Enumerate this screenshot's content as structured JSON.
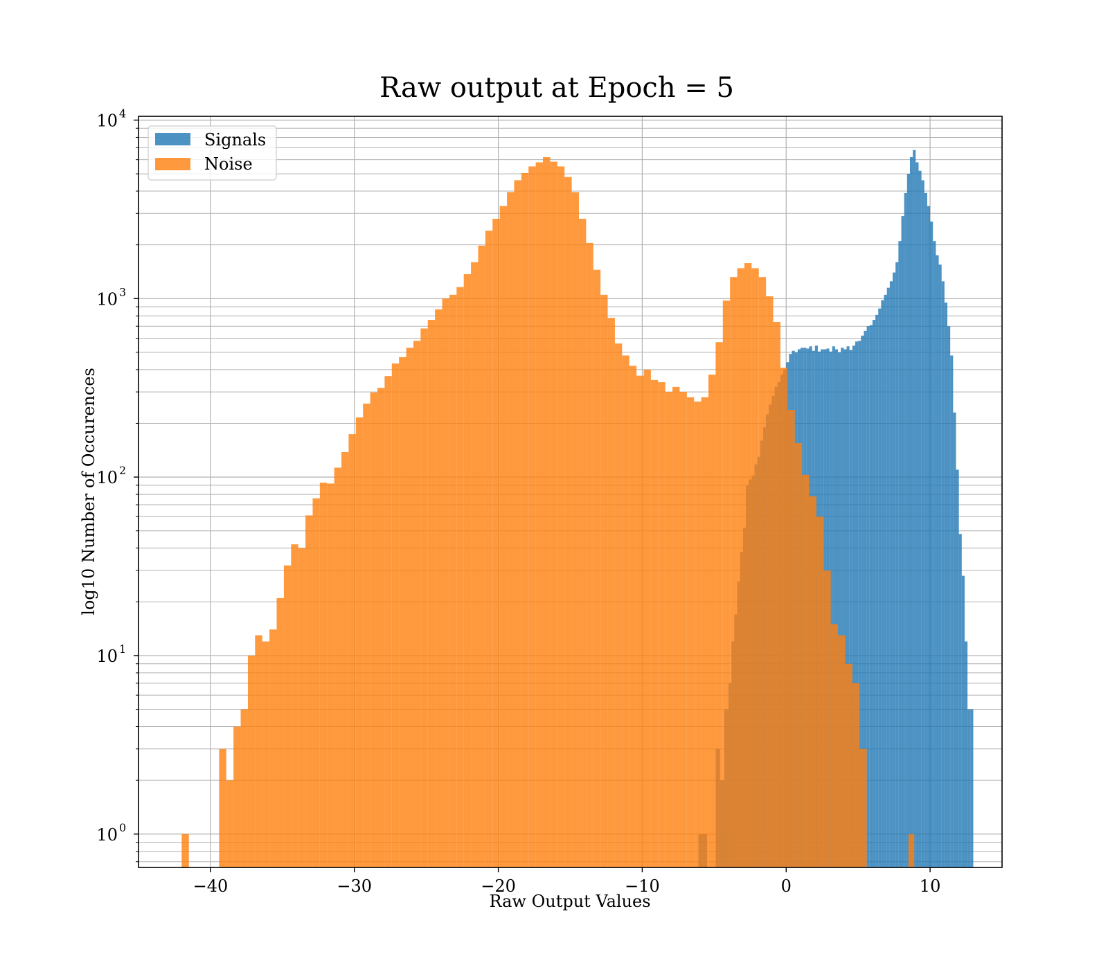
{
  "chart_data": {
    "type": "histogram",
    "title": "Raw output at Epoch = 5",
    "xlabel": "Raw Output Values",
    "ylabel": "log10 Number of Occurences",
    "xlim": [
      -45,
      15
    ],
    "ylim": [
      0.65,
      10500
    ],
    "yscale": "log",
    "grid": true,
    "legend_position": "upper-left",
    "x_ticks": [
      {
        "value": -40,
        "label": "−40"
      },
      {
        "value": -30,
        "label": "−30"
      },
      {
        "value": -20,
        "label": "−20"
      },
      {
        "value": -10,
        "label": "−10"
      },
      {
        "value": 0,
        "label": "0"
      },
      {
        "value": 10,
        "label": "10"
      }
    ],
    "y_ticks": [
      {
        "value": 1,
        "base": "10",
        "exp": "0"
      },
      {
        "value": 10,
        "base": "10",
        "exp": "1"
      },
      {
        "value": 100,
        "base": "10",
        "exp": "2"
      },
      {
        "value": 1000,
        "base": "10",
        "exp": "3"
      },
      {
        "value": 10000,
        "base": "10",
        "exp": "4"
      }
    ],
    "series": [
      {
        "name": "Signals",
        "color": "#1f77b4",
        "alpha": 0.8,
        "bins": [
          [
            -6.1,
            -5.8,
            1
          ],
          [
            -5.8,
            -5.5,
            1
          ],
          [
            -4.9,
            -4.6,
            3
          ],
          [
            -4.6,
            -4.3,
            2
          ],
          [
            -4.3,
            -4.0,
            5
          ],
          [
            -4.0,
            -3.8,
            7
          ],
          [
            -3.8,
            -3.6,
            12
          ],
          [
            -3.6,
            -3.4,
            17
          ],
          [
            -3.4,
            -3.2,
            26
          ],
          [
            -3.2,
            -3.0,
            38
          ],
          [
            -3.0,
            -2.8,
            52
          ],
          [
            -2.8,
            -2.6,
            90
          ],
          [
            -2.6,
            -2.4,
            97
          ],
          [
            -2.4,
            -2.2,
            102
          ],
          [
            -2.2,
            -2.0,
            118
          ],
          [
            -2.0,
            -1.8,
            130
          ],
          [
            -1.8,
            -1.6,
            160
          ],
          [
            -1.6,
            -1.4,
            190
          ],
          [
            -1.4,
            -1.2,
            225
          ],
          [
            -1.2,
            -1.0,
            255
          ],
          [
            -1.0,
            -0.8,
            285
          ],
          [
            -0.8,
            -0.6,
            320
          ],
          [
            -0.6,
            -0.4,
            340
          ],
          [
            -0.4,
            -0.2,
            375
          ],
          [
            -0.2,
            0.0,
            400
          ],
          [
            0.0,
            0.2,
            440
          ],
          [
            0.2,
            0.4,
            490
          ],
          [
            0.4,
            0.6,
            510
          ],
          [
            0.6,
            0.8,
            500
          ],
          [
            0.8,
            1.0,
            520
          ],
          [
            1.0,
            1.2,
            530
          ],
          [
            1.2,
            1.4,
            530
          ],
          [
            1.4,
            1.6,
            525
          ],
          [
            1.6,
            1.8,
            540
          ],
          [
            1.8,
            2.0,
            510
          ],
          [
            2.0,
            2.2,
            545
          ],
          [
            2.2,
            2.4,
            505
          ],
          [
            2.4,
            2.6,
            520
          ],
          [
            2.6,
            2.8,
            520
          ],
          [
            2.8,
            3.0,
            525
          ],
          [
            3.0,
            3.2,
            505
          ],
          [
            3.2,
            3.4,
            540
          ],
          [
            3.4,
            3.6,
            520
          ],
          [
            3.6,
            3.8,
            500
          ],
          [
            3.8,
            4.0,
            530
          ],
          [
            4.0,
            4.2,
            520
          ],
          [
            4.2,
            4.4,
            540
          ],
          [
            4.4,
            4.6,
            515
          ],
          [
            4.6,
            4.8,
            545
          ],
          [
            4.8,
            5.0,
            575
          ],
          [
            5.0,
            5.2,
            580
          ],
          [
            5.2,
            5.4,
            620
          ],
          [
            5.4,
            5.6,
            660
          ],
          [
            5.6,
            5.8,
            700
          ],
          [
            5.8,
            6.0,
            710
          ],
          [
            6.0,
            6.2,
            760
          ],
          [
            6.2,
            6.4,
            810
          ],
          [
            6.4,
            6.6,
            880
          ],
          [
            6.6,
            6.8,
            980
          ],
          [
            6.8,
            7.0,
            1050
          ],
          [
            7.0,
            7.2,
            1150
          ],
          [
            7.2,
            7.4,
            1250
          ],
          [
            7.4,
            7.6,
            1400
          ],
          [
            7.6,
            7.8,
            1600
          ],
          [
            7.8,
            8.0,
            2100
          ],
          [
            8.0,
            8.2,
            2900
          ],
          [
            8.2,
            8.4,
            3900
          ],
          [
            8.4,
            8.6,
            5000
          ],
          [
            8.6,
            8.8,
            6200
          ],
          [
            8.8,
            9.0,
            6800
          ],
          [
            9.0,
            9.2,
            5800
          ],
          [
            9.2,
            9.4,
            5200
          ],
          [
            9.4,
            9.6,
            4600
          ],
          [
            9.6,
            9.8,
            3900
          ],
          [
            9.8,
            10.0,
            3300
          ],
          [
            10.0,
            10.2,
            2700
          ],
          [
            10.2,
            10.4,
            2100
          ],
          [
            10.4,
            10.6,
            1750
          ],
          [
            10.6,
            10.8,
            1550
          ],
          [
            10.8,
            11.0,
            1250
          ],
          [
            11.0,
            11.2,
            950
          ],
          [
            11.2,
            11.4,
            700
          ],
          [
            11.4,
            11.6,
            480
          ],
          [
            11.6,
            11.8,
            230
          ],
          [
            11.8,
            12.0,
            110
          ],
          [
            12.0,
            12.2,
            48
          ],
          [
            12.2,
            12.4,
            28
          ],
          [
            12.4,
            12.6,
            12
          ],
          [
            12.6,
            12.8,
            5
          ],
          [
            12.8,
            13.0,
            5
          ]
        ]
      },
      {
        "name": "Noise",
        "color": "#ff7f0e",
        "alpha": 0.8,
        "bins": [
          [
            -42.0,
            -41.5,
            1
          ],
          [
            -39.4,
            -38.9,
            3
          ],
          [
            -38.9,
            -38.4,
            2
          ],
          [
            -38.4,
            -37.9,
            4
          ],
          [
            -37.9,
            -37.4,
            5
          ],
          [
            -37.4,
            -36.9,
            10
          ],
          [
            -36.9,
            -36.4,
            13
          ],
          [
            -36.4,
            -35.9,
            12
          ],
          [
            -35.9,
            -35.4,
            14
          ],
          [
            -35.4,
            -34.9,
            21
          ],
          [
            -34.9,
            -34.4,
            32
          ],
          [
            -34.4,
            -33.9,
            42
          ],
          [
            -33.9,
            -33.4,
            40
          ],
          [
            -33.4,
            -32.9,
            61
          ],
          [
            -32.9,
            -32.4,
            76
          ],
          [
            -32.4,
            -31.9,
            93
          ],
          [
            -31.9,
            -31.4,
            92
          ],
          [
            -31.4,
            -30.9,
            113
          ],
          [
            -30.9,
            -30.4,
            138
          ],
          [
            -30.4,
            -29.9,
            174
          ],
          [
            -29.9,
            -29.4,
            216
          ],
          [
            -29.4,
            -28.9,
            258
          ],
          [
            -28.9,
            -28.4,
            298
          ],
          [
            -28.4,
            -27.9,
            316
          ],
          [
            -27.9,
            -27.4,
            368
          ],
          [
            -27.4,
            -26.9,
            433
          ],
          [
            -26.9,
            -26.4,
            470
          ],
          [
            -26.4,
            -25.9,
            530
          ],
          [
            -25.9,
            -25.4,
            580
          ],
          [
            -25.4,
            -24.9,
            680
          ],
          [
            -24.9,
            -24.4,
            760
          ],
          [
            -24.4,
            -23.9,
            870
          ],
          [
            -23.9,
            -23.4,
            1000
          ],
          [
            -23.4,
            -22.9,
            1050
          ],
          [
            -22.9,
            -22.4,
            1160
          ],
          [
            -22.4,
            -21.9,
            1370
          ],
          [
            -21.9,
            -21.4,
            1600
          ],
          [
            -21.4,
            -20.9,
            1980
          ],
          [
            -20.9,
            -20.4,
            2400
          ],
          [
            -20.4,
            -19.9,
            2800
          ],
          [
            -19.9,
            -19.4,
            3300
          ],
          [
            -19.4,
            -18.9,
            3950
          ],
          [
            -18.9,
            -18.4,
            4600
          ],
          [
            -18.4,
            -17.9,
            5050
          ],
          [
            -17.9,
            -17.4,
            5500
          ],
          [
            -17.4,
            -16.9,
            5800
          ],
          [
            -16.9,
            -16.4,
            6200
          ],
          [
            -16.4,
            -15.9,
            5850
          ],
          [
            -15.9,
            -15.4,
            5500
          ],
          [
            -15.4,
            -14.9,
            4800
          ],
          [
            -14.9,
            -14.4,
            3950
          ],
          [
            -14.4,
            -13.9,
            2800
          ],
          [
            -13.9,
            -13.4,
            2050
          ],
          [
            -13.4,
            -12.9,
            1450
          ],
          [
            -12.9,
            -12.4,
            1050
          ],
          [
            -12.4,
            -11.9,
            780
          ],
          [
            -11.9,
            -11.4,
            560
          ],
          [
            -11.4,
            -10.9,
            480
          ],
          [
            -10.9,
            -10.4,
            420
          ],
          [
            -10.4,
            -9.9,
            370
          ],
          [
            -9.9,
            -9.4,
            400
          ],
          [
            -9.4,
            -8.9,
            350
          ],
          [
            -8.9,
            -8.4,
            340
          ],
          [
            -8.4,
            -7.9,
            300
          ],
          [
            -7.9,
            -7.4,
            320
          ],
          [
            -7.4,
            -6.9,
            300
          ],
          [
            -6.9,
            -6.4,
            280
          ],
          [
            -6.4,
            -5.9,
            265
          ],
          [
            -5.9,
            -5.4,
            280
          ],
          [
            -5.4,
            -4.9,
            375
          ],
          [
            -4.9,
            -4.4,
            570
          ],
          [
            -4.4,
            -3.9,
            975
          ],
          [
            -3.9,
            -3.4,
            1320
          ],
          [
            -3.4,
            -2.9,
            1480
          ],
          [
            -2.9,
            -2.4,
            1580
          ],
          [
            -2.4,
            -1.9,
            1480
          ],
          [
            -1.9,
            -1.4,
            1320
          ],
          [
            -1.4,
            -0.9,
            1030
          ],
          [
            -0.9,
            -0.4,
            740
          ],
          [
            -0.4,
            0.1,
            410
          ],
          [
            0.1,
            0.6,
            238
          ],
          [
            0.6,
            1.1,
            155
          ],
          [
            1.1,
            1.6,
            103
          ],
          [
            1.6,
            2.1,
            78
          ],
          [
            2.1,
            2.6,
            60
          ],
          [
            2.6,
            3.1,
            30
          ],
          [
            3.1,
            3.6,
            15
          ],
          [
            3.6,
            4.1,
            13
          ],
          [
            4.1,
            4.6,
            9
          ],
          [
            4.6,
            5.1,
            7
          ],
          [
            5.1,
            5.6,
            3
          ],
          [
            8.5,
            8.9,
            1
          ]
        ]
      }
    ]
  }
}
